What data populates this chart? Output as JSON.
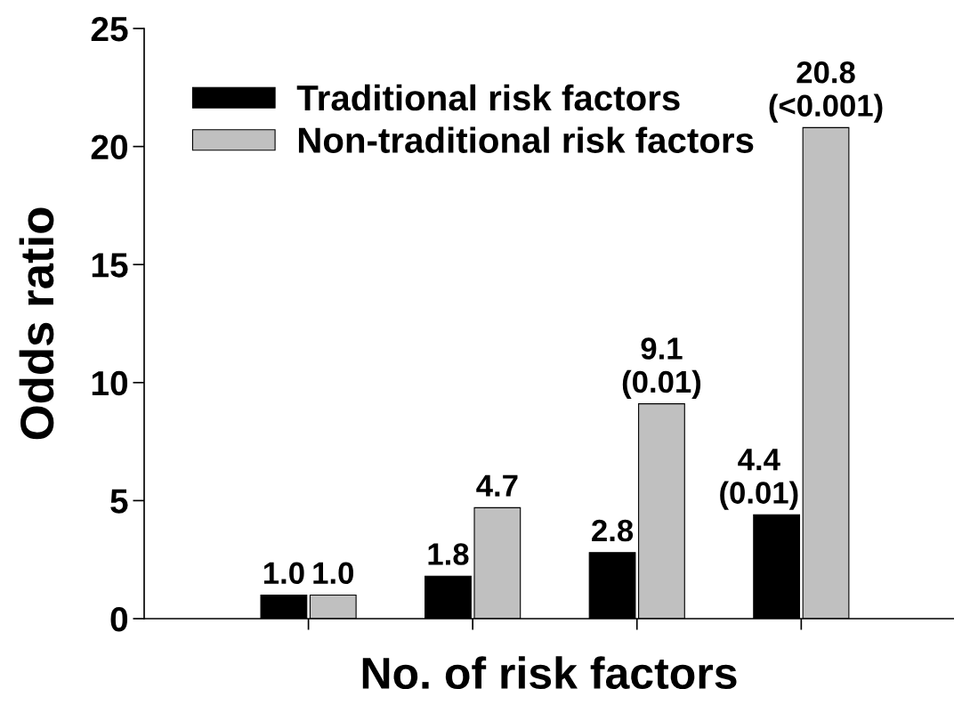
{
  "chart_data": {
    "type": "bar",
    "xlabel": "No. of risk factors",
    "ylabel": "Odds ratio",
    "categories": [
      null,
      null,
      null,
      null
    ],
    "series": [
      {
        "name": "Traditional risk factors",
        "color": "#000000",
        "values": [
          1.0,
          1.8,
          2.8,
          4.4
        ],
        "value_labels": [
          "1.0",
          "1.8",
          "2.8",
          "4.4\n(0.01)"
        ]
      },
      {
        "name": "Non-traditional risk factors",
        "color": "#c0c0c0",
        "values": [
          1.0,
          4.7,
          9.1,
          20.8
        ],
        "value_labels": [
          "1.0",
          "4.7",
          "9.1\n(0.01)",
          "20.8\n(<0.001)"
        ]
      }
    ],
    "ylim": [
      0,
      25
    ],
    "yticks": [
      0,
      5,
      10,
      15,
      20,
      25
    ],
    "grid": false,
    "legend": "top left"
  }
}
